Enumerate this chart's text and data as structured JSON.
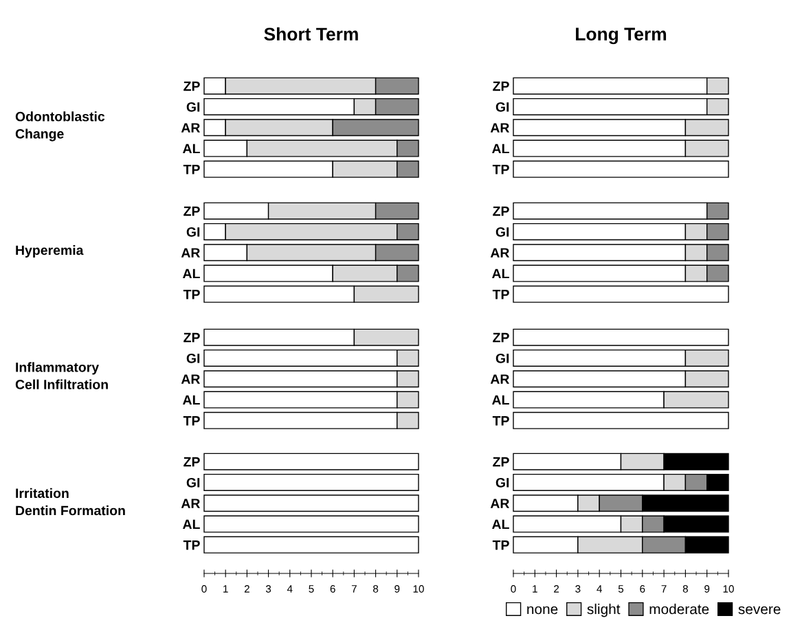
{
  "chart_data": [
    {
      "type": "bar",
      "orientation": "horizontal",
      "stacked": true,
      "title": "Short Term",
      "ylabel": "Odontoblastic\nChange",
      "categories": [
        "ZP",
        "GI",
        "AR",
        "AL",
        "TP"
      ],
      "xlim": [
        0,
        10
      ],
      "tick_labels": "y",
      "series": [
        {
          "color": "#ffffff",
          "values": [
            1,
            7,
            1,
            2,
            6
          ]
        },
        {
          "color": "#d9d9d9",
          "values": [
            7,
            1,
            5,
            7,
            3
          ]
        },
        {
          "color": "#8c8c8c",
          "values": [
            2,
            2,
            4,
            1,
            1
          ]
        },
        {
          "color": "#000000",
          "values": [
            0,
            0,
            0,
            0,
            0
          ]
        }
      ]
    },
    {
      "type": "bar",
      "orientation": "horizontal",
      "stacked": true,
      "title": "Long Term",
      "categories": [
        "ZP",
        "GI",
        "AR",
        "AL",
        "TP"
      ],
      "xlim": [
        0,
        10
      ],
      "tick_labels": "y",
      "series": [
        {
          "color": "#ffffff",
          "values": [
            9,
            9,
            8,
            8,
            10
          ]
        },
        {
          "color": "#d9d9d9",
          "values": [
            1,
            1,
            2,
            2,
            0
          ]
        },
        {
          "color": "#8c8c8c",
          "values": [
            0,
            0,
            0,
            0,
            0
          ]
        },
        {
          "color": "#000000",
          "values": [
            0,
            0,
            0,
            0,
            0
          ]
        }
      ]
    },
    {
      "type": "bar",
      "orientation": "horizontal",
      "stacked": true,
      "ylabel": "Hyperemia",
      "categories": [
        "ZP",
        "GI",
        "AR",
        "AL",
        "TP"
      ],
      "xlim": [
        0,
        10
      ],
      "tick_labels": "y",
      "series": [
        {
          "color": "#ffffff",
          "values": [
            3,
            1,
            2,
            6,
            7
          ]
        },
        {
          "color": "#d9d9d9",
          "values": [
            5,
            8,
            6,
            3,
            3
          ]
        },
        {
          "color": "#8c8c8c",
          "values": [
            2,
            1,
            2,
            1,
            0
          ]
        },
        {
          "color": "#000000",
          "values": [
            0,
            0,
            0,
            0,
            0
          ]
        }
      ]
    },
    {
      "type": "bar",
      "orientation": "horizontal",
      "stacked": true,
      "categories": [
        "ZP",
        "GI",
        "AR",
        "AL",
        "TP"
      ],
      "xlim": [
        0,
        10
      ],
      "tick_labels": "y",
      "series": [
        {
          "color": "#ffffff",
          "values": [
            9,
            8,
            8,
            8,
            10
          ]
        },
        {
          "color": "#d9d9d9",
          "values": [
            0,
            1,
            1,
            1,
            0
          ]
        },
        {
          "color": "#8c8c8c",
          "values": [
            1,
            1,
            1,
            1,
            0
          ]
        },
        {
          "color": "#000000",
          "values": [
            0,
            0,
            0,
            0,
            0
          ]
        }
      ]
    },
    {
      "type": "bar",
      "orientation": "horizontal",
      "stacked": true,
      "ylabel": "Inflammatory\nCell Infiltration",
      "categories": [
        "ZP",
        "GI",
        "AR",
        "AL",
        "TP"
      ],
      "xlim": [
        0,
        10
      ],
      "tick_labels": "y",
      "series": [
        {
          "color": "#ffffff",
          "values": [
            7,
            9,
            9,
            9,
            9
          ]
        },
        {
          "color": "#d9d9d9",
          "values": [
            3,
            1,
            1,
            1,
            1
          ]
        },
        {
          "color": "#8c8c8c",
          "values": [
            0,
            0,
            0,
            0,
            0
          ]
        },
        {
          "color": "#000000",
          "values": [
            0,
            0,
            0,
            0,
            0
          ]
        }
      ]
    },
    {
      "type": "bar",
      "orientation": "horizontal",
      "stacked": true,
      "categories": [
        "ZP",
        "GI",
        "AR",
        "AL",
        "TP"
      ],
      "xlim": [
        0,
        10
      ],
      "tick_labels": "y",
      "series": [
        {
          "color": "#ffffff",
          "values": [
            10,
            8,
            8,
            7,
            10
          ]
        },
        {
          "color": "#d9d9d9",
          "values": [
            0,
            2,
            2,
            3,
            0
          ]
        },
        {
          "color": "#8c8c8c",
          "values": [
            0,
            0,
            0,
            0,
            0
          ]
        },
        {
          "color": "#000000",
          "values": [
            0,
            0,
            0,
            0,
            0
          ]
        }
      ]
    },
    {
      "type": "bar",
      "orientation": "horizontal",
      "stacked": true,
      "ylabel": "Irritation\nDentin Formation",
      "categories": [
        "ZP",
        "GI",
        "AR",
        "AL",
        "TP"
      ],
      "xlim": [
        0,
        10
      ],
      "xticks": [
        0,
        1,
        2,
        3,
        4,
        5,
        6,
        7,
        8,
        9,
        10
      ],
      "series": [
        {
          "color": "#ffffff",
          "values": [
            10,
            10,
            10,
            10,
            10
          ]
        },
        {
          "color": "#d9d9d9",
          "values": [
            0,
            0,
            0,
            0,
            0
          ]
        },
        {
          "color": "#8c8c8c",
          "values": [
            0,
            0,
            0,
            0,
            0
          ]
        },
        {
          "color": "#000000",
          "values": [
            0,
            0,
            0,
            0,
            0
          ]
        }
      ]
    },
    {
      "type": "bar",
      "orientation": "horizontal",
      "stacked": true,
      "categories": [
        "ZP",
        "GI",
        "AR",
        "AL",
        "TP"
      ],
      "xlim": [
        0,
        10
      ],
      "xticks": [
        0,
        1,
        2,
        3,
        4,
        5,
        6,
        7,
        8,
        9,
        10
      ],
      "legend": "bottom right",
      "series": [
        {
          "name": "none",
          "color": "#ffffff",
          "values": [
            5,
            7,
            3,
            5,
            3
          ]
        },
        {
          "name": "slight",
          "color": "#d9d9d9",
          "values": [
            2,
            1,
            1,
            1,
            3
          ]
        },
        {
          "name": "moderate",
          "color": "#8c8c8c",
          "values": [
            0,
            1,
            2,
            1,
            2
          ]
        },
        {
          "name": "severe",
          "color": "#000000",
          "values": [
            3,
            1,
            4,
            3,
            2
          ]
        }
      ]
    }
  ]
}
